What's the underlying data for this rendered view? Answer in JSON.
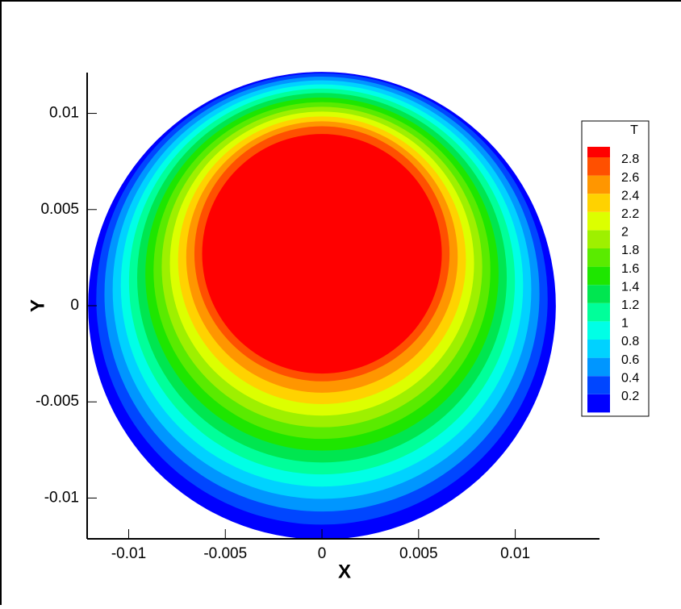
{
  "chart_data": {
    "type": "contour",
    "x_label": "X",
    "y_label": "Y",
    "legend_title": "T",
    "xlim": [
      -0.01215,
      0.01436
    ],
    "ylim": [
      -0.01212,
      0.01212
    ],
    "xticks": [
      -0.01,
      -0.005,
      0,
      0.005,
      0.01
    ],
    "yticks": [
      -0.01,
      -0.005,
      0,
      0.005,
      0.01
    ],
    "levels": [
      0.2,
      0.4,
      0.6,
      0.8,
      1,
      1.2,
      1.4,
      1.6,
      1.8,
      2,
      2.2,
      2.4,
      2.6,
      2.8
    ],
    "colors": [
      "#0000ff",
      "#0046ff",
      "#0096ff",
      "#00d2ff",
      "#00ffe6",
      "#00ff9a",
      "#00e650",
      "#1ee600",
      "#5aeb00",
      "#9ef000",
      "#dcff00",
      "#ffd200",
      "#ff9600",
      "#ff5000"
    ],
    "top_color": "#ff0000"
  }
}
